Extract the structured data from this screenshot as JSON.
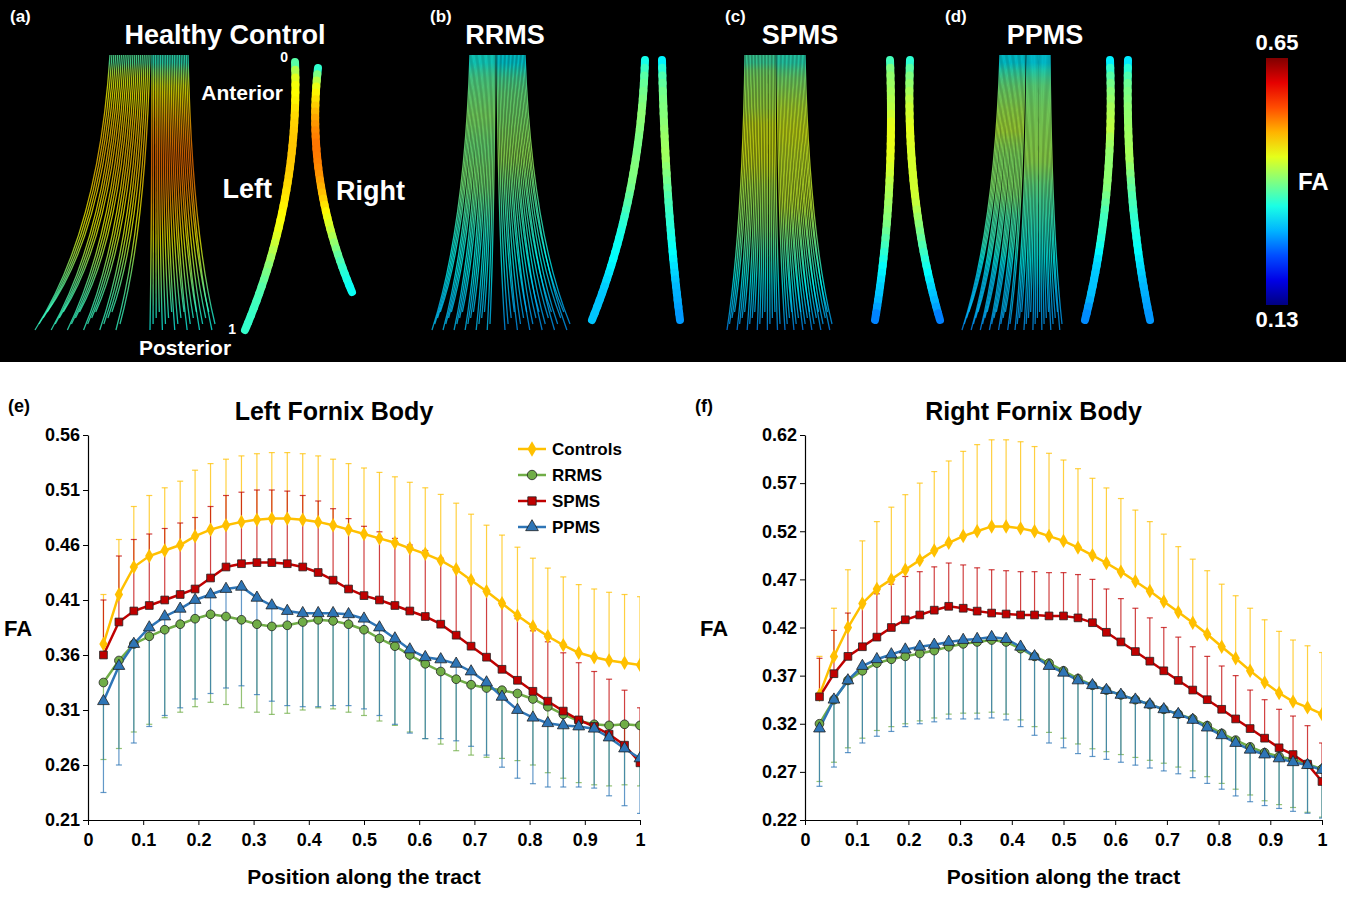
{
  "chart_data": [
    {
      "type": "line",
      "letter": "(e)",
      "title": "Left Fornix Body",
      "x_label": "Position along the tract",
      "y_label": "FA",
      "x": [
        0.028,
        0.056,
        0.083,
        0.111,
        0.139,
        0.167,
        0.194,
        0.222,
        0.25,
        0.278,
        0.306,
        0.333,
        0.361,
        0.389,
        0.417,
        0.444,
        0.472,
        0.5,
        0.528,
        0.556,
        0.583,
        0.611,
        0.639,
        0.667,
        0.694,
        0.722,
        0.75,
        0.778,
        0.806,
        0.833,
        0.861,
        0.889,
        0.917,
        0.944,
        0.972,
        1
      ],
      "xlim": [
        0,
        1
      ],
      "xticks": [
        0,
        0.1,
        0.2,
        0.3,
        0.4,
        0.5,
        0.6,
        0.7,
        0.8,
        0.9,
        1
      ],
      "ylim": [
        0.21,
        0.56
      ],
      "yticks": [
        0.21,
        0.26,
        0.31,
        0.36,
        0.41,
        0.46,
        0.51,
        0.56
      ],
      "legend": "top-right",
      "series": [
        {
          "name": "Controls",
          "color": "#FFC000",
          "marker": "diamond",
          "values": [
            0.37,
            0.415,
            0.44,
            0.45,
            0.455,
            0.46,
            0.468,
            0.474,
            0.478,
            0.481,
            0.483,
            0.484,
            0.484,
            0.483,
            0.481,
            0.478,
            0.474,
            0.47,
            0.466,
            0.462,
            0.457,
            0.452,
            0.446,
            0.438,
            0.428,
            0.418,
            0.407,
            0.396,
            0.386,
            0.377,
            0.369,
            0.362,
            0.358,
            0.355,
            0.353,
            0.351
          ],
          "errors": [
            0.045,
            0.05,
            0.055,
            0.055,
            0.057,
            0.058,
            0.06,
            0.06,
            0.06,
            0.06,
            0.06,
            0.06,
            0.06,
            0.06,
            0.06,
            0.06,
            0.06,
            0.06,
            0.06,
            0.06,
            0.06,
            0.06,
            0.06,
            0.06,
            0.06,
            0.06,
            0.062,
            0.062,
            0.062,
            0.062,
            0.062,
            0.062,
            0.062,
            0.062,
            0.062,
            0.062
          ]
        },
        {
          "name": "RRMS",
          "color": "#70AD47",
          "marker": "circle",
          "values": [
            0.335,
            0.355,
            0.37,
            0.377,
            0.383,
            0.388,
            0.393,
            0.397,
            0.395,
            0.392,
            0.388,
            0.386,
            0.387,
            0.39,
            0.392,
            0.391,
            0.388,
            0.383,
            0.375,
            0.368,
            0.36,
            0.352,
            0.345,
            0.338,
            0.333,
            0.33,
            0.328,
            0.325,
            0.32,
            0.313,
            0.306,
            0.3,
            0.297,
            0.296,
            0.297,
            0.296
          ],
          "errors": [
            -0.07,
            -0.08,
            -0.08,
            -0.08,
            -0.08,
            -0.08,
            -0.08,
            -0.08,
            -0.08,
            -0.08,
            -0.08,
            -0.08,
            -0.08,
            -0.08,
            -0.08,
            -0.08,
            -0.08,
            -0.078,
            -0.075,
            -0.072,
            -0.07,
            -0.068,
            -0.066,
            -0.065,
            -0.064,
            -0.063,
            -0.062,
            -0.061,
            -0.06,
            -0.06,
            -0.058,
            -0.056,
            -0.055,
            -0.055,
            -0.055,
            -0.055
          ]
        },
        {
          "name": "SPMS",
          "color": "#C00000",
          "marker": "square",
          "values": [
            0.36,
            0.39,
            0.4,
            0.405,
            0.41,
            0.415,
            0.42,
            0.43,
            0.44,
            0.443,
            0.444,
            0.444,
            0.443,
            0.44,
            0.435,
            0.428,
            0.42,
            0.414,
            0.41,
            0.405,
            0.4,
            0.395,
            0.388,
            0.378,
            0.368,
            0.358,
            0.347,
            0.337,
            0.327,
            0.318,
            0.309,
            0.301,
            0.295,
            0.288,
            0.278,
            0.262
          ],
          "errors": [
            0.05,
            0.06,
            0.065,
            0.065,
            0.065,
            0.065,
            0.065,
            0.065,
            0.065,
            0.065,
            0.066,
            0.066,
            0.066,
            0.065,
            0.065,
            0.065,
            0.064,
            0.063,
            0.062,
            0.061,
            0.06,
            0.06,
            0.06,
            0.06,
            0.06,
            0.06,
            0.058,
            0.056,
            0.055,
            0.054,
            0.053,
            0.052,
            0.05,
            0.05,
            0.05,
            0.05
          ]
        },
        {
          "name": "PPMS",
          "color": "#2E75B6",
          "marker": "triangle",
          "values": [
            0.318,
            0.35,
            0.37,
            0.385,
            0.395,
            0.402,
            0.41,
            0.415,
            0.42,
            0.422,
            0.412,
            0.405,
            0.4,
            0.398,
            0.398,
            0.398,
            0.397,
            0.393,
            0.385,
            0.375,
            0.365,
            0.358,
            0.356,
            0.352,
            0.345,
            0.335,
            0.322,
            0.31,
            0.303,
            0.298,
            0.296,
            0.295,
            0.293,
            0.285,
            0.275,
            0.266
          ],
          "errors": [
            -0.083,
            -0.09,
            -0.09,
            -0.09,
            -0.09,
            -0.09,
            -0.09,
            -0.09,
            -0.09,
            -0.09,
            -0.088,
            -0.087,
            -0.086,
            -0.085,
            -0.085,
            -0.084,
            -0.083,
            -0.082,
            -0.08,
            -0.078,
            -0.076,
            -0.074,
            -0.072,
            -0.07,
            -0.068,
            -0.066,
            -0.064,
            -0.062,
            -0.06,
            -0.058,
            -0.056,
            -0.055,
            -0.054,
            -0.053,
            -0.052,
            -0.05
          ]
        }
      ]
    },
    {
      "type": "line",
      "letter": "(f)",
      "title": "Right Fornix Body",
      "x_label": "Position along the tract",
      "y_label": "FA",
      "x": [
        0.028,
        0.056,
        0.083,
        0.111,
        0.139,
        0.167,
        0.194,
        0.222,
        0.25,
        0.278,
        0.306,
        0.333,
        0.361,
        0.389,
        0.417,
        0.444,
        0.472,
        0.5,
        0.528,
        0.556,
        0.583,
        0.611,
        0.639,
        0.667,
        0.694,
        0.722,
        0.75,
        0.778,
        0.806,
        0.833,
        0.861,
        0.889,
        0.917,
        0.944,
        0.972,
        1
      ],
      "xlim": [
        0,
        1
      ],
      "xticks": [
        0,
        0.1,
        0.2,
        0.3,
        0.4,
        0.5,
        0.6,
        0.7,
        0.8,
        0.9,
        1
      ],
      "ylim": [
        0.22,
        0.62
      ],
      "yticks": [
        0.22,
        0.27,
        0.32,
        0.37,
        0.42,
        0.47,
        0.52,
        0.57,
        0.62
      ],
      "series": [
        {
          "color": "#FFC000",
          "marker": "diamond",
          "values": [
            0.35,
            0.39,
            0.42,
            0.445,
            0.46,
            0.47,
            0.48,
            0.49,
            0.5,
            0.508,
            0.515,
            0.52,
            0.525,
            0.525,
            0.523,
            0.52,
            0.515,
            0.51,
            0.503,
            0.495,
            0.487,
            0.478,
            0.468,
            0.458,
            0.447,
            0.436,
            0.425,
            0.413,
            0.4,
            0.388,
            0.375,
            0.363,
            0.352,
            0.343,
            0.337,
            0.33
          ],
          "errors": [
            0.04,
            0.05,
            0.06,
            0.065,
            0.07,
            0.075,
            0.078,
            0.08,
            0.082,
            0.085,
            0.088,
            0.09,
            0.09,
            0.09,
            0.09,
            0.088,
            0.086,
            0.084,
            0.082,
            0.08,
            0.078,
            0.076,
            0.074,
            0.072,
            0.07,
            0.068,
            0.066,
            0.066,
            0.065,
            0.065,
            0.065,
            0.065,
            0.064,
            0.064,
            0.064,
            0.064
          ]
        },
        {
          "color": "#70AD47",
          "marker": "circle",
          "values": [
            0.32,
            0.345,
            0.365,
            0.375,
            0.383,
            0.387,
            0.39,
            0.393,
            0.396,
            0.4,
            0.403,
            0.405,
            0.407,
            0.405,
            0.398,
            0.39,
            0.383,
            0.375,
            0.367,
            0.36,
            0.355,
            0.35,
            0.345,
            0.34,
            0.335,
            0.33,
            0.325,
            0.318,
            0.31,
            0.303,
            0.296,
            0.29,
            0.286,
            0.283,
            0.278,
            0.273
          ],
          "errors": [
            -0.06,
            -0.065,
            -0.07,
            -0.07,
            -0.07,
            -0.07,
            -0.07,
            -0.07,
            -0.07,
            -0.07,
            -0.072,
            -0.074,
            -0.075,
            -0.075,
            -0.074,
            -0.073,
            -0.072,
            -0.07,
            -0.068,
            -0.066,
            -0.064,
            -0.062,
            -0.06,
            -0.058,
            -0.056,
            -0.055,
            -0.054,
            -0.053,
            -0.052,
            -0.051,
            -0.05,
            -0.05,
            -0.05,
            -0.05,
            -0.05,
            -0.05
          ]
        },
        {
          "color": "#C00000",
          "marker": "square",
          "values": [
            0.348,
            0.372,
            0.39,
            0.4,
            0.41,
            0.42,
            0.428,
            0.433,
            0.438,
            0.442,
            0.44,
            0.437,
            0.435,
            0.434,
            0.433,
            0.433,
            0.432,
            0.432,
            0.43,
            0.425,
            0.415,
            0.405,
            0.395,
            0.385,
            0.375,
            0.365,
            0.355,
            0.345,
            0.335,
            0.325,
            0.315,
            0.305,
            0.295,
            0.288,
            0.278,
            0.26
          ],
          "errors": [
            0.04,
            0.045,
            0.045,
            0.045,
            0.045,
            0.045,
            0.045,
            0.045,
            0.045,
            0.045,
            0.045,
            0.045,
            0.045,
            0.045,
            0.045,
            0.045,
            0.045,
            0.045,
            0.045,
            0.045,
            0.045,
            0.045,
            0.045,
            0.045,
            0.045,
            0.045,
            0.045,
            0.045,
            0.045,
            0.045,
            0.04,
            0.04,
            0.04,
            0.04,
            0.04,
            0.04
          ]
        },
        {
          "color": "#2E75B6",
          "marker": "triangle",
          "values": [
            0.315,
            0.345,
            0.365,
            0.38,
            0.387,
            0.392,
            0.397,
            0.4,
            0.402,
            0.405,
            0.407,
            0.408,
            0.41,
            0.408,
            0.4,
            0.39,
            0.38,
            0.373,
            0.365,
            0.36,
            0.355,
            0.35,
            0.345,
            0.34,
            0.335,
            0.33,
            0.324,
            0.316,
            0.308,
            0.3,
            0.293,
            0.288,
            0.284,
            0.28,
            0.277,
            0.272
          ],
          "errors": [
            -0.06,
            -0.07,
            -0.075,
            -0.08,
            -0.08,
            -0.08,
            -0.08,
            -0.08,
            -0.08,
            -0.08,
            -0.082,
            -0.083,
            -0.084,
            -0.084,
            -0.083,
            -0.082,
            -0.08,
            -0.078,
            -0.076,
            -0.074,
            -0.072,
            -0.07,
            -0.068,
            -0.066,
            -0.064,
            -0.062,
            -0.06,
            -0.058,
            -0.056,
            -0.055,
            -0.054,
            -0.053,
            -0.052,
            -0.051,
            -0.05,
            -0.05
          ]
        }
      ]
    }
  ],
  "tract_panels": {
    "panels": [
      {
        "letter": "(a)",
        "title": "Healthy Control"
      },
      {
        "letter": "(b)",
        "title": "RRMS"
      },
      {
        "letter": "(c)",
        "title": "SPMS"
      },
      {
        "letter": "(d)",
        "title": "PPMS"
      }
    ],
    "annotations": {
      "anterior": {
        "value": 0,
        "label": "Anterior"
      },
      "posterior": {
        "value": 1,
        "label": "Posterior"
      },
      "left": "Left",
      "right": "Right"
    },
    "colorbar": {
      "label": "FA",
      "range": [
        0.13,
        0.65
      ],
      "ticks": [
        0.65,
        0.13
      ]
    }
  }
}
